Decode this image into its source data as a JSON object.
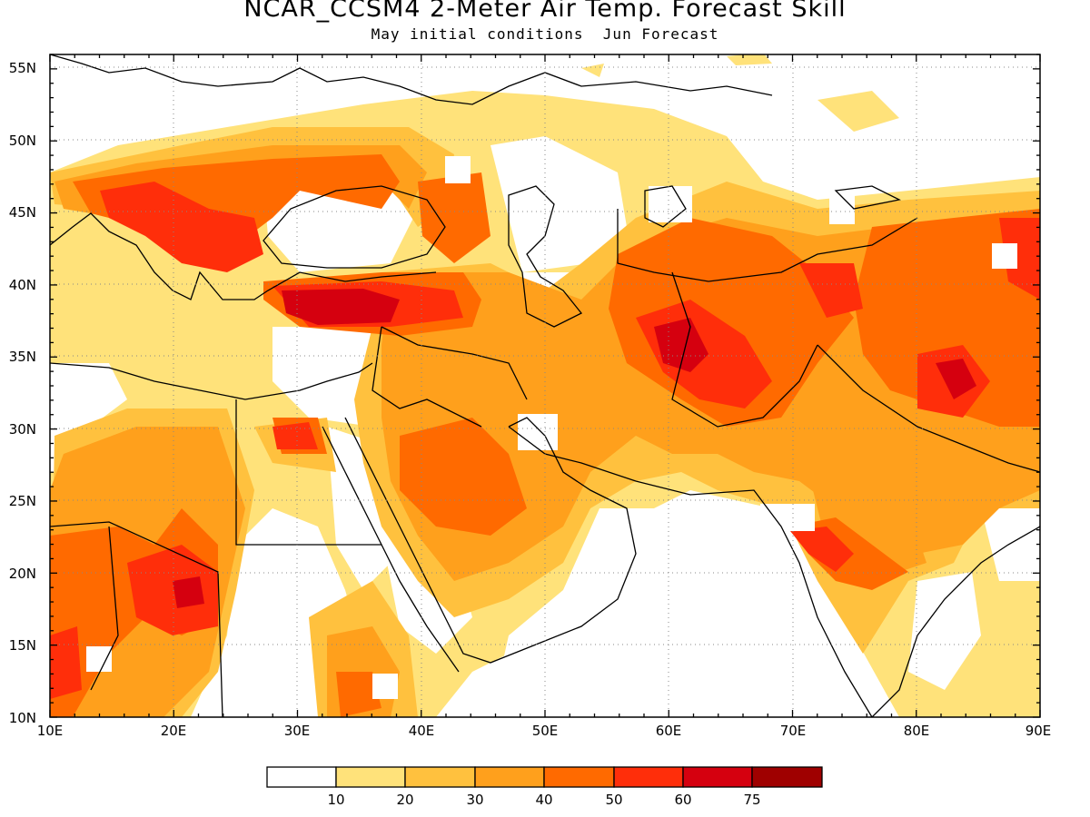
{
  "title": "NCAR_CCSM4 2-Meter Air Temp. Forecast Skill",
  "subtitle": "May initial conditions  Jun Forecast",
  "axes": {
    "lon_labels": [
      "10E",
      "20E",
      "30E",
      "40E",
      "50E",
      "60E",
      "70E",
      "80E",
      "90E"
    ],
    "lat_labels": [
      "55N",
      "50N",
      "45N",
      "40N",
      "35N",
      "30N",
      "25N",
      "20N",
      "15N",
      "10N"
    ],
    "lon_range": [
      10,
      90
    ],
    "lat_range": [
      10,
      56
    ],
    "grid": "dotted"
  },
  "legend": {
    "colors": [
      "#ffffff",
      "#ffe27a",
      "#ffc13e",
      "#ffa01c",
      "#ff6a00",
      "#ff2e0a",
      "#d5000f",
      "#9f0000"
    ],
    "labels": [
      "10",
      "20",
      "30",
      "40",
      "50",
      "60",
      "75"
    ]
  },
  "skill_colors": {
    "c10": "#ffe27a",
    "c20": "#ffc13e",
    "c30": "#ffa01c",
    "c40": "#ff6a00",
    "c50": "#ff2e0a",
    "c60": "#d5000f",
    "c75": "#9f0000"
  }
}
